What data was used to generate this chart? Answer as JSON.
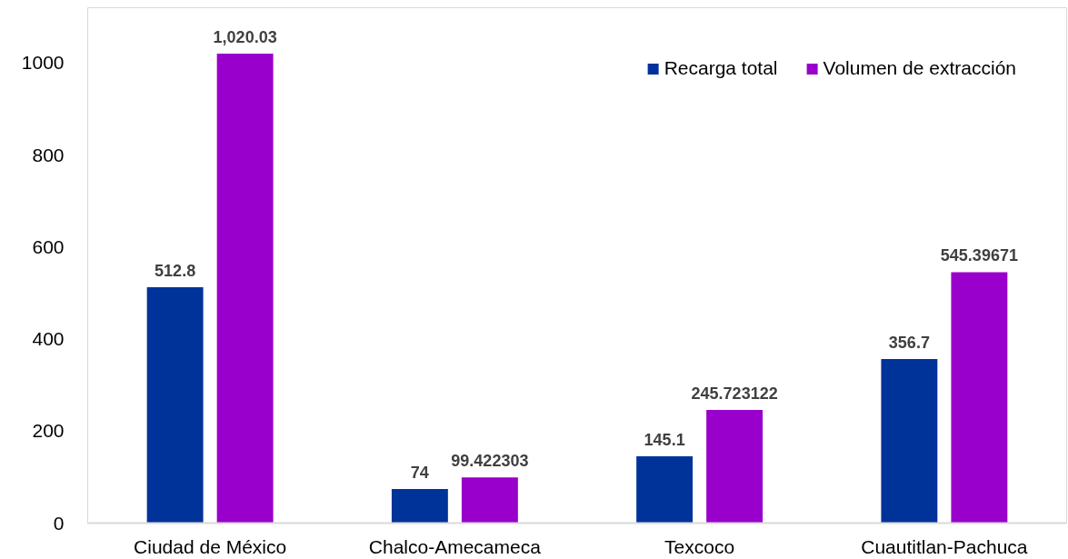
{
  "chart_data": {
    "type": "bar",
    "categories": [
      "Ciudad de México",
      "Chalco-Amecameca",
      "Texcoco",
      "Cuautitlan-Pachuca"
    ],
    "series": [
      {
        "name": "Recarga total",
        "color": "#003399",
        "values": [
          512.8,
          74,
          145.1,
          356.7
        ],
        "value_labels": [
          "512.8",
          "74",
          "145.1",
          "356.7"
        ]
      },
      {
        "name": "Volumen de extracción",
        "color": "#9900cc",
        "values": [
          1020.03,
          99.422303,
          245.723122,
          545.39671
        ],
        "value_labels": [
          "1,020.03",
          "99.422303",
          "245.723122",
          "545.39671"
        ]
      }
    ],
    "ylim": [
      0,
      1120
    ],
    "yticks": [
      0,
      200,
      400,
      600,
      800,
      1000
    ],
    "grid": false,
    "legend": "top right"
  }
}
